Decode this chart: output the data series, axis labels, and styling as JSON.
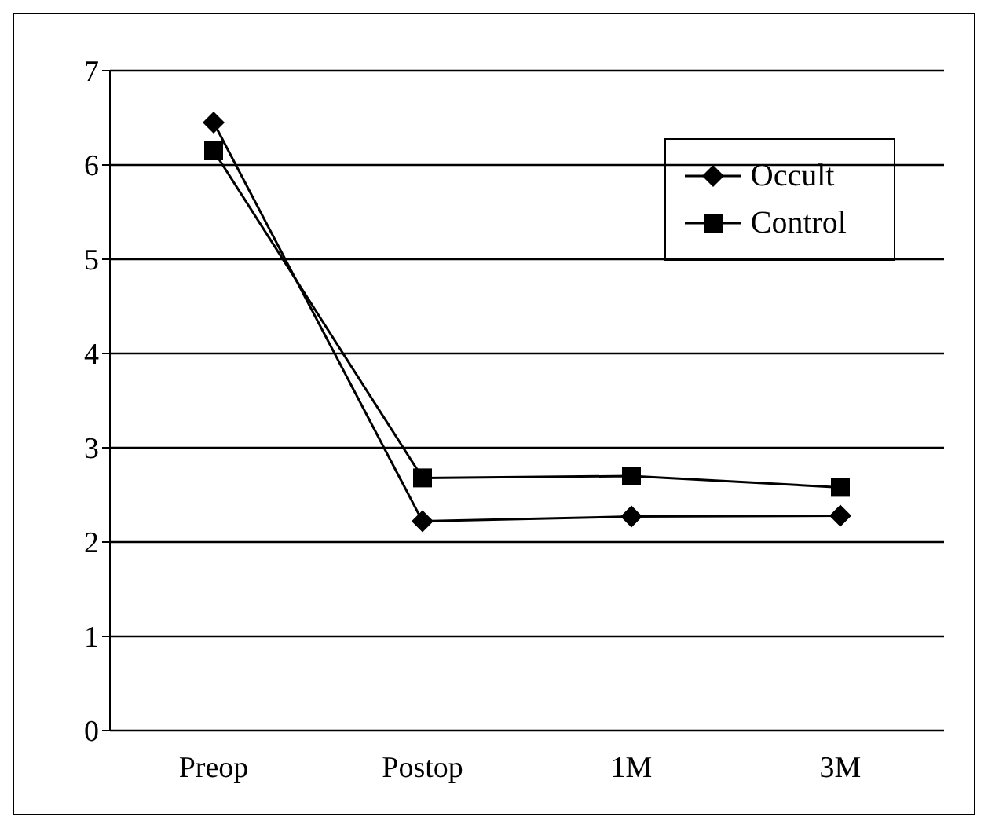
{
  "chart_data": {
    "type": "line",
    "categories": [
      "Preop",
      "Postop",
      "1M",
      "3M"
    ],
    "series": [
      {
        "name": "Occult",
        "color": "#000000",
        "marker": "diamond",
        "values": [
          6.45,
          2.22,
          2.27,
          2.28
        ]
      },
      {
        "name": "Control",
        "color": "#000000",
        "marker": "square",
        "values": [
          6.15,
          2.68,
          2.7,
          2.58
        ]
      }
    ],
    "ylim": [
      0,
      7
    ],
    "yticks": [
      0,
      1,
      2,
      3,
      4,
      5,
      6,
      7
    ],
    "grid": "y",
    "legend": "top right",
    "line_style": "solid"
  }
}
